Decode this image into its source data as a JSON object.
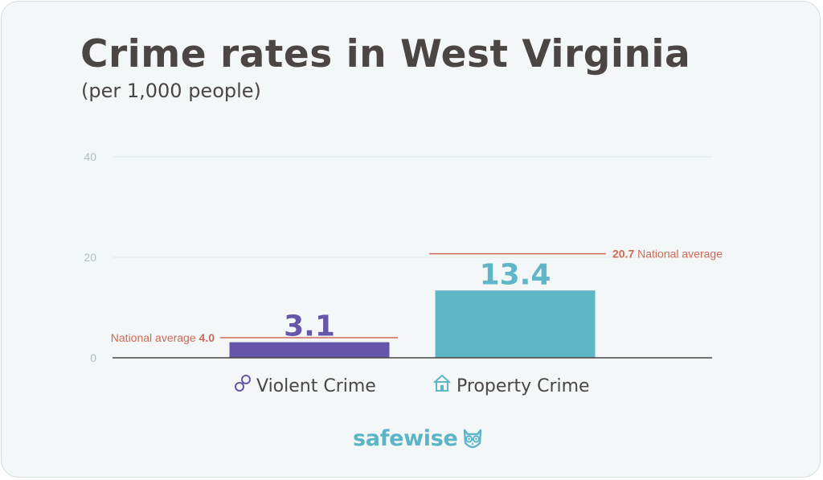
{
  "title": "Crime rates in West Virginia",
  "subtitle": "(per 1,000 people)",
  "brand": "safewise",
  "chart_data": {
    "type": "bar",
    "categories": [
      "Violent Crime",
      "Property Crime"
    ],
    "values": [
      3.1,
      13.4
    ],
    "value_labels": [
      "3.1",
      "13.4"
    ],
    "category_icons": [
      "handcuffs-icon",
      "house-icon"
    ],
    "bar_colors": [
      "#6656aa",
      "#5fb6c6"
    ],
    "ylim": [
      0,
      40
    ],
    "yticks": [
      0,
      20,
      40
    ],
    "ytick_labels": [
      "0",
      "20",
      "40"
    ],
    "grid": true,
    "national_averages": [
      {
        "value": 4.0,
        "prefix": "National average ",
        "bold": "4.0",
        "suffix": ""
      },
      {
        "value": 20.7,
        "prefix": "",
        "bold": "20.7",
        "suffix": " National average"
      }
    ],
    "average_line_color": "#cf6a55"
  }
}
